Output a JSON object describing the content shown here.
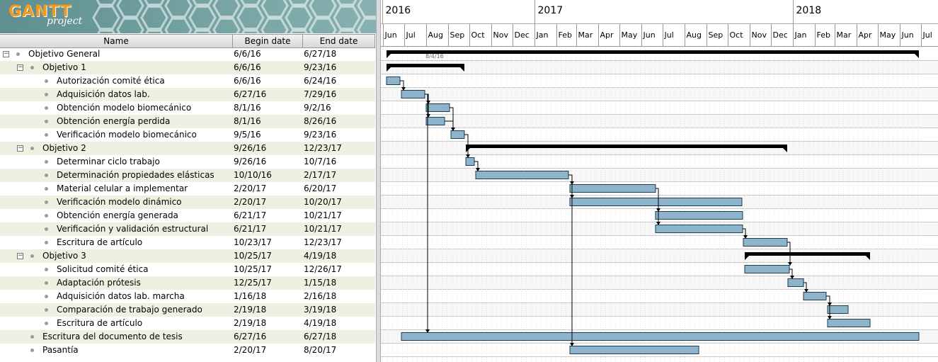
{
  "app": {
    "logo_word": "GANTT",
    "logo_sub": "project"
  },
  "table": {
    "col_name": "Name",
    "col_begin": "Begin date",
    "col_end": "End date"
  },
  "tasks": [
    {
      "name": "Objetivo General",
      "begin": "6/6/16",
      "end": "6/27/18",
      "level": 0,
      "group": true,
      "toggle": "−"
    },
    {
      "name": "Objetivo 1",
      "begin": "6/6/16",
      "end": "9/23/16",
      "level": 1,
      "group": true,
      "toggle": "−"
    },
    {
      "name": "Autorización comité ética",
      "begin": "6/6/16",
      "end": "6/24/16",
      "level": 2,
      "group": false
    },
    {
      "name": "Adquisición datos lab.",
      "begin": "6/27/16",
      "end": "7/29/16",
      "level": 2,
      "group": false
    },
    {
      "name": "Obtención modelo biomecánico",
      "begin": "8/1/16",
      "end": "9/2/16",
      "level": 2,
      "group": false
    },
    {
      "name": "Obtención energía perdida",
      "begin": "8/1/16",
      "end": "8/26/16",
      "level": 2,
      "group": false
    },
    {
      "name": "Verificación modelo biomecánico",
      "begin": "9/5/16",
      "end": "9/23/16",
      "level": 2,
      "group": false
    },
    {
      "name": "Objetivo 2",
      "begin": "9/26/16",
      "end": "12/23/17",
      "level": 1,
      "group": true,
      "toggle": "−"
    },
    {
      "name": "Determinar ciclo trabajo",
      "begin": "9/26/16",
      "end": "10/7/16",
      "level": 2,
      "group": false
    },
    {
      "name": "Determinación propiedades elásticas",
      "begin": "10/10/16",
      "end": "2/17/17",
      "level": 2,
      "group": false
    },
    {
      "name": "Material celular a implementar",
      "begin": "2/20/17",
      "end": "6/20/17",
      "level": 2,
      "group": false
    },
    {
      "name": "Verificación modelo dinámico",
      "begin": "2/20/17",
      "end": "10/20/17",
      "level": 2,
      "group": false
    },
    {
      "name": "Obtención energía generada",
      "begin": "6/21/17",
      "end": "10/21/17",
      "level": 2,
      "group": false
    },
    {
      "name": "Verificación y validación estructural",
      "begin": "6/21/17",
      "end": "10/21/17",
      "level": 2,
      "group": false
    },
    {
      "name": "Escritura de artículo",
      "begin": "10/23/17",
      "end": "12/23/17",
      "level": 2,
      "group": false
    },
    {
      "name": "Objetivo 3",
      "begin": "10/25/17",
      "end": "4/19/18",
      "level": 1,
      "group": true,
      "toggle": "−"
    },
    {
      "name": "Solicitud comité ética",
      "begin": "10/25/17",
      "end": "12/26/17",
      "level": 2,
      "group": false
    },
    {
      "name": "Adaptación prótesis",
      "begin": "12/25/17",
      "end": "1/15/18",
      "level": 2,
      "group": false
    },
    {
      "name": "Adquisición datos lab. marcha",
      "begin": "1/16/18",
      "end": "2/16/18",
      "level": 2,
      "group": false
    },
    {
      "name": "Comparación de trabajo generado",
      "begin": "2/19/18",
      "end": "3/19/18",
      "level": 2,
      "group": false
    },
    {
      "name": "Escritura de artículo",
      "begin": "2/19/18",
      "end": "4/19/18",
      "level": 2,
      "group": false
    },
    {
      "name": "Escritura del documento de tesis",
      "begin": "6/27/16",
      "end": "6/27/18",
      "level": 1,
      "group": false
    },
    {
      "name": "Pasantía",
      "begin": "2/20/17",
      "end": "8/20/17",
      "level": 1,
      "group": false
    }
  ],
  "timeline": {
    "years": [
      "2016",
      "2017",
      "2018"
    ],
    "months": [
      "Jun",
      "Jul",
      "Aug",
      "Sep",
      "Oct",
      "Nov",
      "Dec",
      "Jan",
      "Feb",
      "Mar",
      "Apr",
      "May",
      "Jun",
      "Jul",
      "Aug",
      "Sep",
      "Oct",
      "Nov",
      "Dec",
      "Jan",
      "Feb",
      "Mar",
      "Apr",
      "May",
      "Jun",
      "Jul"
    ],
    "today_marker": "8/4/16"
  },
  "colors": {
    "bar_fill": "#8eb4cc",
    "bar_border": "#1f3d52",
    "summary": "#000000",
    "row_alt": "#efefe2"
  }
}
